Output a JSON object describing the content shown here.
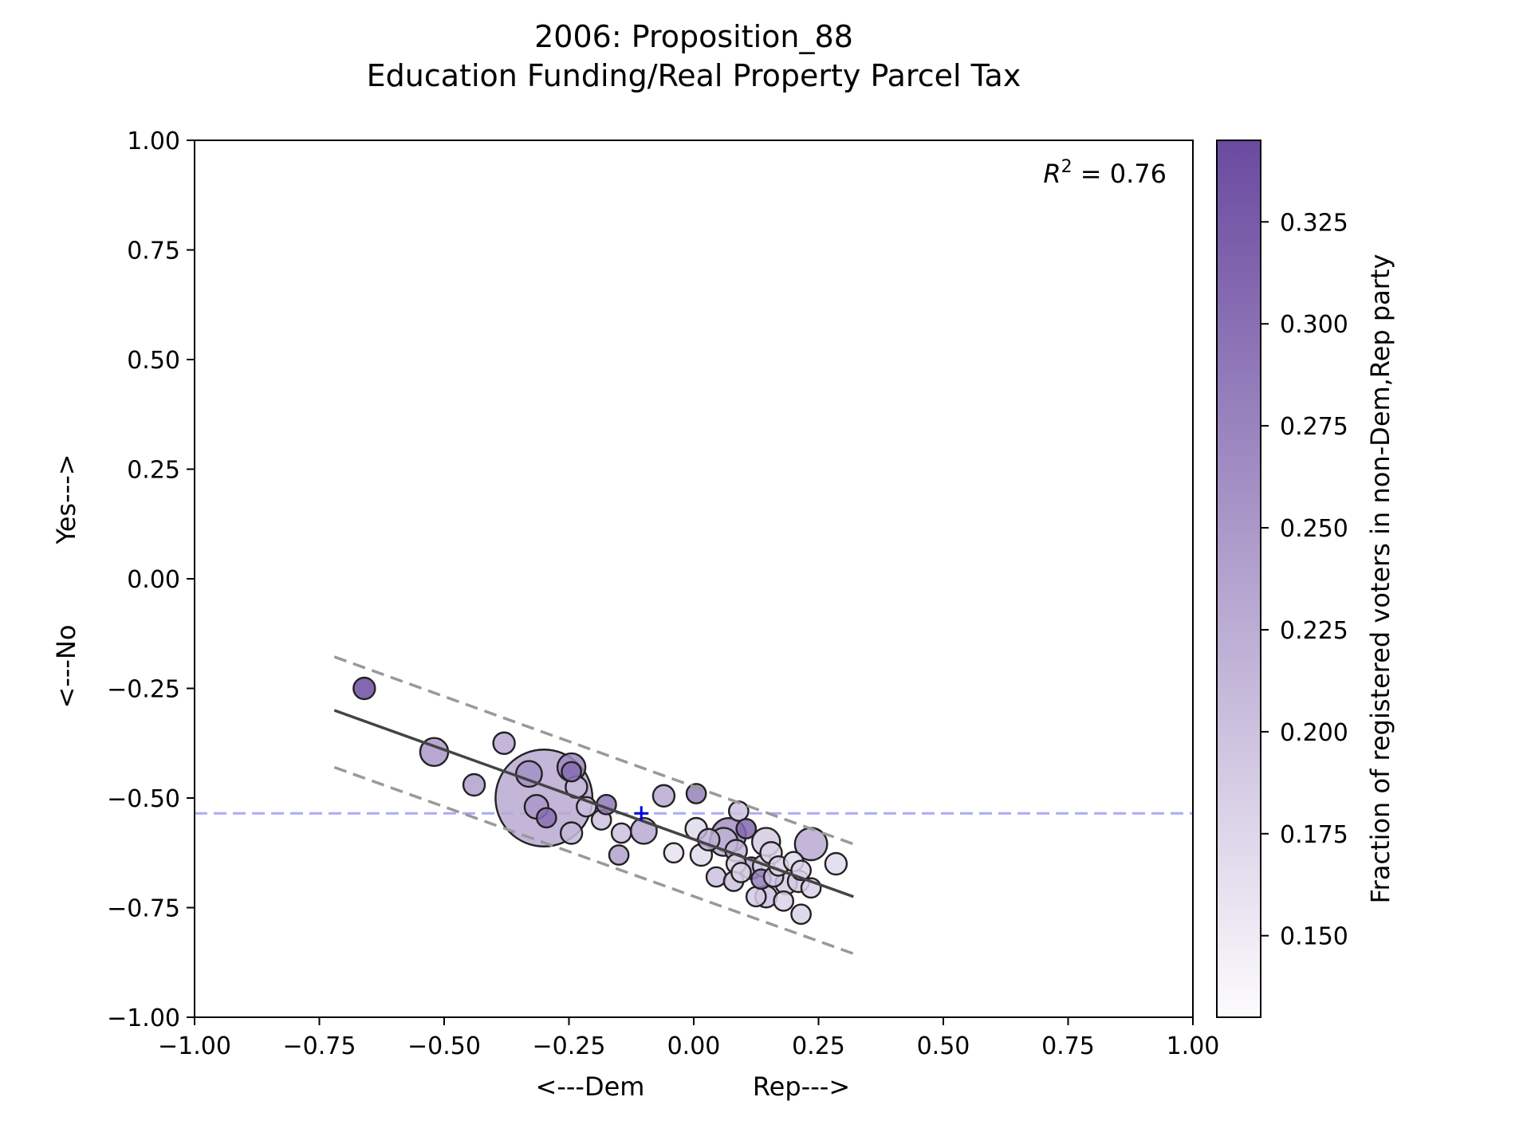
{
  "chart_data": {
    "type": "scatter",
    "title": "2006: Proposition_88",
    "subtitle": "Education Funding/Real Property Parcel Tax",
    "xlabel_left": "<---Dem",
    "xlabel_right": "Rep--->",
    "ylabel_bottom": "<---No",
    "ylabel_top": "Yes--->",
    "xlim": [
      -1.0,
      1.0
    ],
    "ylim": [
      -1.0,
      1.0
    ],
    "xticks": [
      "−1.00",
      "−0.75",
      "−0.50",
      "−0.25",
      "0.00",
      "0.25",
      "0.50",
      "0.75",
      "1.00"
    ],
    "yticks": [
      "−1.00",
      "−0.75",
      "−0.50",
      "−0.25",
      "0.00",
      "0.25",
      "0.50",
      "0.75",
      "1.00"
    ],
    "annotation": "R² = 0.76",
    "reference_line_y": -0.535,
    "marker_point": {
      "x": -0.105,
      "y": -0.535
    },
    "fit_line": {
      "x": [
        -0.72,
        0.32
      ],
      "y": [
        -0.3,
        -0.725
      ]
    },
    "band_upper": {
      "x": [
        -0.72,
        0.32
      ],
      "y": [
        -0.178,
        -0.605
      ]
    },
    "band_lower": {
      "x": [
        -0.72,
        0.32
      ],
      "y": [
        -0.43,
        -0.855
      ]
    },
    "colorbar": {
      "label": "Fraction of registered voters in non-Dem,Rep party",
      "range": [
        0.13,
        0.345
      ],
      "ticks": [
        "0.150",
        "0.175",
        "0.200",
        "0.225",
        "0.250",
        "0.275",
        "0.300",
        "0.325"
      ],
      "color_low": "#fcfbfd",
      "color_high": "#6a4aa0"
    },
    "points": [
      {
        "x": -0.66,
        "y": -0.25,
        "c": 0.34,
        "s": 10
      },
      {
        "x": -0.52,
        "y": -0.395,
        "c": 0.25,
        "s": 13
      },
      {
        "x": -0.44,
        "y": -0.47,
        "c": 0.24,
        "s": 10
      },
      {
        "x": -0.38,
        "y": -0.375,
        "c": 0.23,
        "s": 10
      },
      {
        "x": -0.33,
        "y": -0.445,
        "c": 0.26,
        "s": 12
      },
      {
        "x": -0.3,
        "y": -0.5,
        "c": 0.23,
        "s": 45
      },
      {
        "x": -0.315,
        "y": -0.52,
        "c": 0.25,
        "s": 11
      },
      {
        "x": -0.295,
        "y": -0.545,
        "c": 0.3,
        "s": 9
      },
      {
        "x": -0.245,
        "y": -0.43,
        "c": 0.27,
        "s": 13
      },
      {
        "x": -0.245,
        "y": -0.44,
        "c": 0.3,
        "s": 9
      },
      {
        "x": -0.235,
        "y": -0.475,
        "c": 0.21,
        "s": 10
      },
      {
        "x": -0.215,
        "y": -0.52,
        "c": 0.2,
        "s": 9
      },
      {
        "x": -0.245,
        "y": -0.58,
        "c": 0.21,
        "s": 10
      },
      {
        "x": -0.185,
        "y": -0.55,
        "c": 0.2,
        "s": 9
      },
      {
        "x": -0.175,
        "y": -0.515,
        "c": 0.29,
        "s": 9
      },
      {
        "x": -0.145,
        "y": -0.58,
        "c": 0.2,
        "s": 9
      },
      {
        "x": -0.15,
        "y": -0.63,
        "c": 0.24,
        "s": 9
      },
      {
        "x": -0.1,
        "y": -0.575,
        "c": 0.23,
        "s": 12
      },
      {
        "x": -0.06,
        "y": -0.495,
        "c": 0.23,
        "s": 10
      },
      {
        "x": -0.04,
        "y": -0.625,
        "c": 0.16,
        "s": 9
      },
      {
        "x": 0.005,
        "y": -0.49,
        "c": 0.28,
        "s": 9
      },
      {
        "x": 0.005,
        "y": -0.57,
        "c": 0.17,
        "s": 10
      },
      {
        "x": 0.015,
        "y": -0.63,
        "c": 0.17,
        "s": 10
      },
      {
        "x": 0.03,
        "y": -0.595,
        "c": 0.22,
        "s": 10
      },
      {
        "x": 0.045,
        "y": -0.68,
        "c": 0.2,
        "s": 9
      },
      {
        "x": 0.06,
        "y": -0.6,
        "c": 0.22,
        "s": 13
      },
      {
        "x": 0.07,
        "y": -0.585,
        "c": 0.26,
        "s": 16
      },
      {
        "x": 0.085,
        "y": -0.62,
        "c": 0.21,
        "s": 10
      },
      {
        "x": 0.09,
        "y": -0.53,
        "c": 0.2,
        "s": 9
      },
      {
        "x": 0.105,
        "y": -0.57,
        "c": 0.31,
        "s": 9
      },
      {
        "x": 0.085,
        "y": -0.65,
        "c": 0.18,
        "s": 9
      },
      {
        "x": 0.08,
        "y": -0.69,
        "c": 0.2,
        "s": 9
      },
      {
        "x": 0.095,
        "y": -0.67,
        "c": 0.18,
        "s": 9
      },
      {
        "x": 0.115,
        "y": -0.66,
        "c": 0.23,
        "s": 10
      },
      {
        "x": 0.125,
        "y": -0.725,
        "c": 0.19,
        "s": 9
      },
      {
        "x": 0.135,
        "y": -0.685,
        "c": 0.28,
        "s": 9
      },
      {
        "x": 0.145,
        "y": -0.725,
        "c": 0.2,
        "s": 10
      },
      {
        "x": 0.14,
        "y": -0.655,
        "c": 0.18,
        "s": 10
      },
      {
        "x": 0.145,
        "y": -0.6,
        "c": 0.19,
        "s": 13
      },
      {
        "x": 0.155,
        "y": -0.625,
        "c": 0.18,
        "s": 10
      },
      {
        "x": 0.16,
        "y": -0.68,
        "c": 0.2,
        "s": 9
      },
      {
        "x": 0.17,
        "y": -0.655,
        "c": 0.18,
        "s": 9
      },
      {
        "x": 0.18,
        "y": -0.735,
        "c": 0.18,
        "s": 9
      },
      {
        "x": 0.185,
        "y": -0.695,
        "c": 0.19,
        "s": 10
      },
      {
        "x": 0.2,
        "y": -0.645,
        "c": 0.17,
        "s": 9
      },
      {
        "x": 0.21,
        "y": -0.69,
        "c": 0.19,
        "s": 10
      },
      {
        "x": 0.215,
        "y": -0.665,
        "c": 0.18,
        "s": 9
      },
      {
        "x": 0.215,
        "y": -0.765,
        "c": 0.18,
        "s": 9
      },
      {
        "x": 0.235,
        "y": -0.605,
        "c": 0.23,
        "s": 15
      },
      {
        "x": 0.235,
        "y": -0.705,
        "c": 0.18,
        "s": 9
      },
      {
        "x": 0.285,
        "y": -0.65,
        "c": 0.17,
        "s": 10
      }
    ]
  }
}
